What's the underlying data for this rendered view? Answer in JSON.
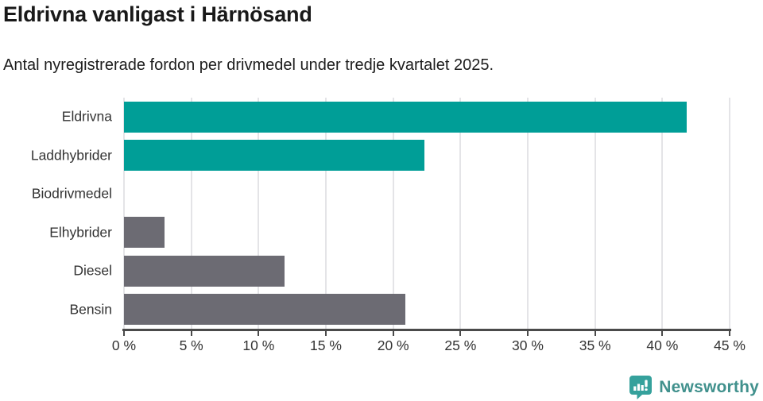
{
  "chart_data": {
    "type": "bar",
    "orientation": "horizontal",
    "title": "Eldrivna vanligast i Härnösand",
    "subtitle": "Antal nyregistrerade fordon per drivmedel under tredje kvartalet 2025.",
    "categories": [
      "Eldrivna",
      "Laddhybrider",
      "Biodrivmedel",
      "Elhybrider",
      "Diesel",
      "Bensin"
    ],
    "values": [
      41.8,
      22.3,
      0,
      3.0,
      11.9,
      20.9
    ],
    "unit": "%",
    "xlabel": "",
    "ylabel": "",
    "xlim": [
      0,
      45
    ],
    "xticks": [
      0,
      5,
      10,
      15,
      20,
      25,
      30,
      35,
      40,
      45
    ],
    "xtick_labels": [
      "0 %",
      "5 %",
      "10 %",
      "15 %",
      "20 %",
      "25 %",
      "30 %",
      "35 %",
      "40 %",
      "45 %"
    ],
    "bar_colors": [
      "#009E97",
      "#009E97",
      "#6C6B73",
      "#6C6B73",
      "#6C6B73",
      "#6C6B73"
    ],
    "grid": "vertical",
    "legend": "none"
  },
  "colors": {
    "accent_teal": "#009E97",
    "neutral_gray": "#6C6B73",
    "gridline": "#E4E4E7",
    "axis": "#4A4A4A",
    "text": "#1A1A1A"
  },
  "footer": {
    "brand": "Newsworthy",
    "brand_color": "#41918D",
    "icon": "newsworthy-speech-bubble-chart-icon",
    "icon_color": "#35A19C"
  }
}
